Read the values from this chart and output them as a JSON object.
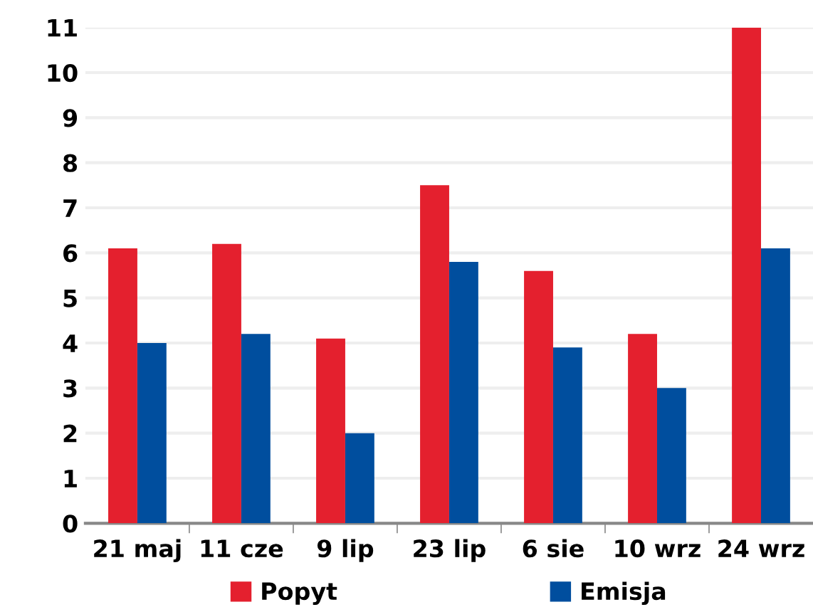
{
  "chart_data": {
    "type": "bar",
    "categories": [
      "21 maj",
      "11 cze",
      "9 lip",
      "23 lip",
      "6 sie",
      "10 wrz",
      "24 wrz"
    ],
    "series": [
      {
        "name": "Popyt",
        "color": "#e4202e",
        "values": [
          6.1,
          6.2,
          4.1,
          7.5,
          5.6,
          4.2,
          11
        ]
      },
      {
        "name": "Emisja",
        "color": "#004e9e",
        "values": [
          4.0,
          4.2,
          2.0,
          5.8,
          3.9,
          3.0,
          6.1
        ]
      }
    ],
    "ylim": [
      0,
      11
    ],
    "yticks": [
      0,
      1,
      2,
      3,
      4,
      5,
      6,
      7,
      8,
      9,
      10,
      11
    ],
    "grid": "y",
    "legend": "bottom"
  }
}
